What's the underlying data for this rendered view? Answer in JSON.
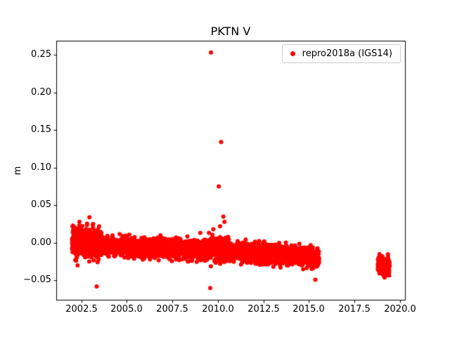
{
  "figure": {
    "background": "#ffffff",
    "text_color": "#000000"
  },
  "chart_data": {
    "type": "scatter",
    "title": "PKTN V",
    "xlabel": "",
    "ylabel": "m",
    "xlim": [
      2001.13,
      2020.27
    ],
    "ylim": [
      -0.0757,
      0.2687
    ],
    "grid": false,
    "xticks": [
      2002.5,
      2005.0,
      2007.5,
      2010.0,
      2012.5,
      2015.0,
      2017.5,
      2020.0
    ],
    "xtick_labels": [
      "2002.5",
      "2005.0",
      "2007.5",
      "2010.0",
      "2012.5",
      "2015.0",
      "2017.5",
      "2020.0"
    ],
    "yticks": [
      -0.05,
      0.0,
      0.05,
      0.1,
      0.15,
      0.2,
      0.25
    ],
    "ytick_labels": [
      "−0.05",
      "0.00",
      "0.05",
      "0.10",
      "0.15",
      "0.20",
      "0.25"
    ],
    "legend": {
      "position": "upper right",
      "entries": [
        {
          "label": "repro2018a (IGS14)",
          "color": "#ff0000",
          "marker": "circle"
        }
      ]
    },
    "series": [
      {
        "name": "repro2018a (IGS14)",
        "color": "#ff0000",
        "marker": "circle",
        "marker_radius": 3,
        "seed": 20180417,
        "clusters": [
          {
            "x0": 2002.0,
            "x1": 2003.6,
            "n": 700,
            "y0": 0.002,
            "y1": -0.001,
            "sigma": 0.009
          },
          {
            "x0": 2003.6,
            "x1": 2006.0,
            "n": 600,
            "y0": -0.004,
            "y1": -0.007,
            "sigma": 0.006
          },
          {
            "x0": 2006.0,
            "x1": 2009.0,
            "n": 750,
            "y0": -0.006,
            "y1": -0.009,
            "sigma": 0.006
          },
          {
            "x0": 2009.0,
            "x1": 2010.6,
            "n": 400,
            "y0": -0.008,
            "y1": -0.01,
            "sigma": 0.008
          },
          {
            "x0": 2010.6,
            "x1": 2013.0,
            "n": 650,
            "y0": -0.011,
            "y1": -0.015,
            "sigma": 0.006
          },
          {
            "x0": 2013.0,
            "x1": 2015.55,
            "n": 650,
            "y0": -0.015,
            "y1": -0.02,
            "sigma": 0.006
          },
          {
            "x0": 2018.78,
            "x1": 2019.42,
            "n": 280,
            "y0": -0.029,
            "y1": -0.031,
            "sigma": 0.0055
          }
        ],
        "outliers": [
          [
            2009.62,
            0.253
          ],
          [
            2010.18,
            0.134
          ],
          [
            2010.05,
            0.075
          ],
          [
            2010.3,
            0.035
          ],
          [
            2010.36,
            0.028
          ],
          [
            2010.12,
            0.022
          ],
          [
            2009.75,
            0.018
          ],
          [
            2002.95,
            0.034
          ],
          [
            2002.4,
            0.028
          ],
          [
            2002.3,
            -0.03
          ],
          [
            2003.35,
            -0.058
          ],
          [
            2009.58,
            -0.06
          ],
          [
            2015.35,
            -0.049
          ],
          [
            2019.15,
            -0.046
          ]
        ]
      }
    ]
  }
}
